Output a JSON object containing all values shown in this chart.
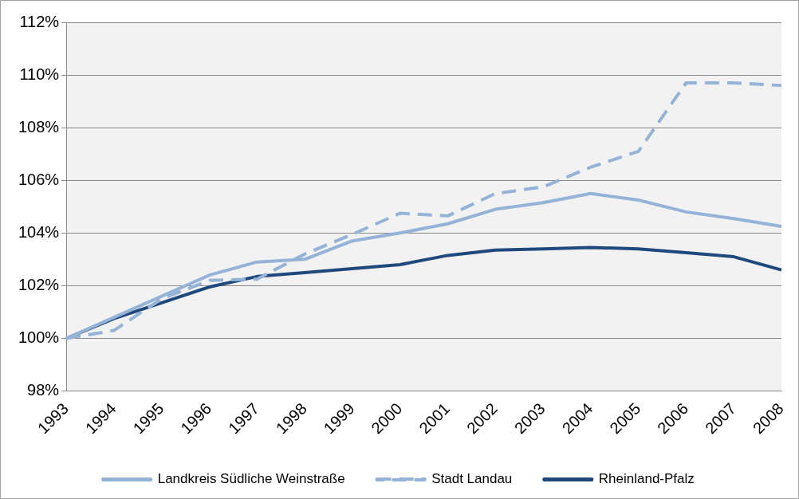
{
  "chart_data": {
    "type": "line",
    "categories": [
      "1993",
      "1994",
      "1995",
      "1996",
      "1997",
      "1998",
      "1999",
      "2000",
      "2001",
      "2002",
      "2003",
      "2004",
      "2005",
      "2006",
      "2007",
      "2008"
    ],
    "series": [
      {
        "name": "Landkreis Südliche Weinstraße",
        "color": "#95b3d7",
        "line_style": "solid",
        "values": [
          100,
          100.8,
          101.6,
          102.4,
          102.9,
          103.0,
          103.7,
          104.0,
          104.35,
          104.9,
          105.15,
          105.5,
          105.25,
          104.8,
          104.55,
          104.25
        ]
      },
      {
        "name": "Stadt Landau",
        "color": "#95b3d7",
        "line_style": "dashed",
        "values": [
          100,
          100.3,
          101.5,
          102.2,
          102.25,
          103.2,
          103.95,
          104.75,
          104.65,
          105.5,
          105.75,
          106.5,
          107.1,
          109.7,
          109.7,
          109.6
        ]
      },
      {
        "name": "Rheinland-Pfalz",
        "color": "#1f497d",
        "line_style": "solid",
        "values": [
          100,
          100.75,
          101.35,
          101.95,
          102.35,
          102.5,
          102.65,
          102.8,
          103.15,
          103.35,
          103.4,
          103.45,
          103.4,
          103.25,
          103.1,
          102.6
        ]
      }
    ],
    "ylim": [
      98,
      112
    ],
    "yticks": [
      {
        "value": 98,
        "label": "98%"
      },
      {
        "value": 100,
        "label": "100%"
      },
      {
        "value": 102,
        "label": "102%"
      },
      {
        "value": 104,
        "label": "104%"
      },
      {
        "value": 106,
        "label": "106%"
      },
      {
        "value": 108,
        "label": "108%"
      },
      {
        "value": 110,
        "label": "110%"
      },
      {
        "value": 112,
        "label": "112%"
      }
    ],
    "grid": "y",
    "legend": "bottom",
    "marker": "none"
  }
}
